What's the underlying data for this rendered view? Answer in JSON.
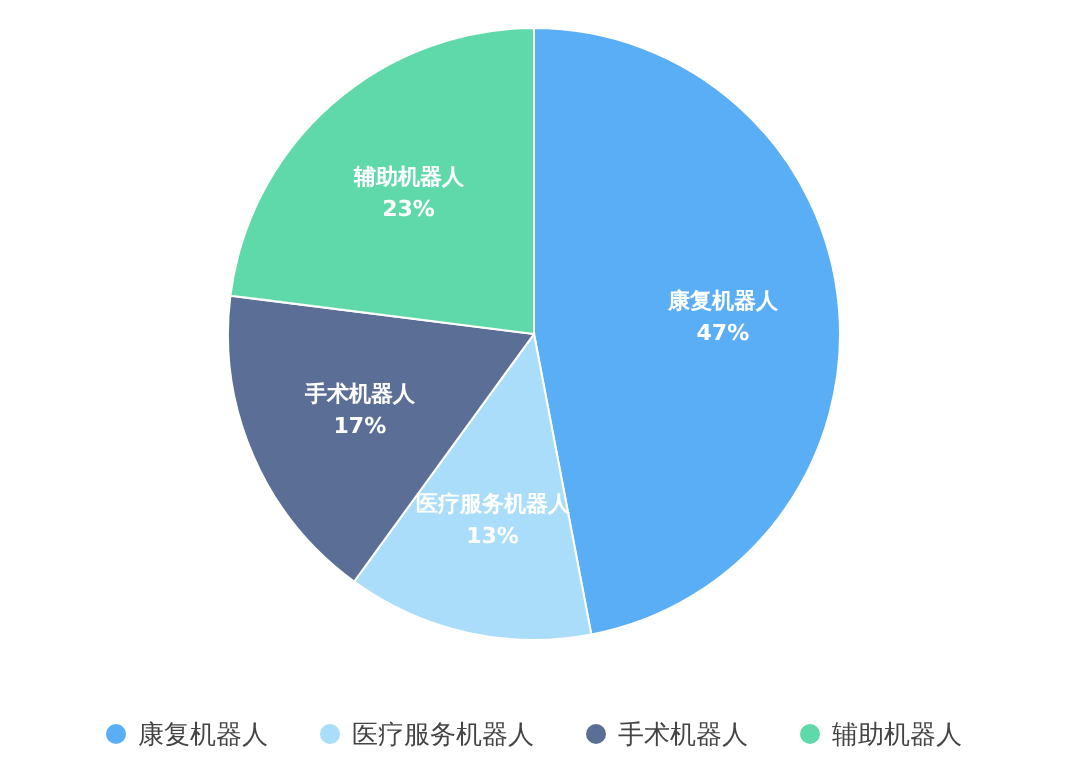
{
  "chart_data": {
    "type": "pie",
    "categories": [
      "康复机器人",
      "医疗服务机器人",
      "手术机器人",
      "辅助机器人"
    ],
    "values": [
      47,
      13,
      17,
      23
    ],
    "colors": [
      "#5aaef5",
      "#a9ddfa",
      "#5b6f96",
      "#60d9aa"
    ],
    "value_labels": [
      "47%",
      "13%",
      "17%",
      "23%"
    ],
    "legend": "bottom"
  }
}
